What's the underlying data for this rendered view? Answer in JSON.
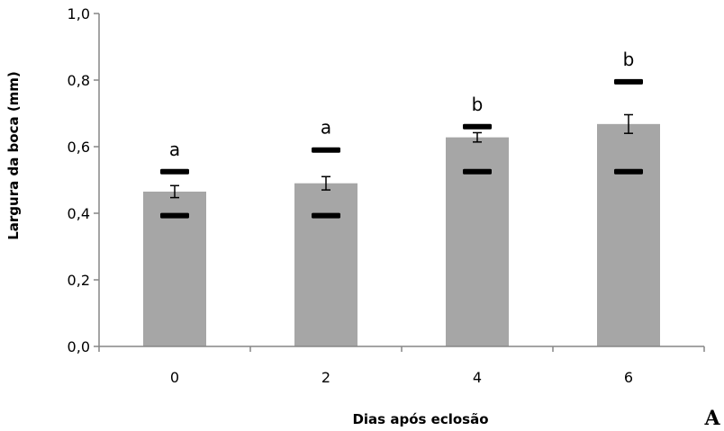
{
  "chart_data": {
    "type": "bar",
    "categories": [
      "0",
      "2",
      "4",
      "6"
    ],
    "values": [
      0.465,
      0.49,
      0.628,
      0.668
    ],
    "error": [
      0.018,
      0.02,
      0.014,
      0.028
    ],
    "min": [
      0.393,
      0.393,
      0.525,
      0.525
    ],
    "max": [
      0.525,
      0.59,
      0.66,
      0.795
    ],
    "significance": [
      "a",
      "a",
      "b",
      "b"
    ],
    "xlabel": "Dias após eclosão",
    "ylabel": "Largura da boca (mm)",
    "ylim": [
      0,
      1
    ],
    "yticks": [
      "0,0",
      "0,2",
      "0,4",
      "0,6",
      "0,8",
      "1,0"
    ],
    "ytick_values": [
      0,
      0.2,
      0.4,
      0.6,
      0.8,
      1.0
    ],
    "bar_color": "#a6a6a6",
    "grid": false,
    "panel_label": "A"
  }
}
